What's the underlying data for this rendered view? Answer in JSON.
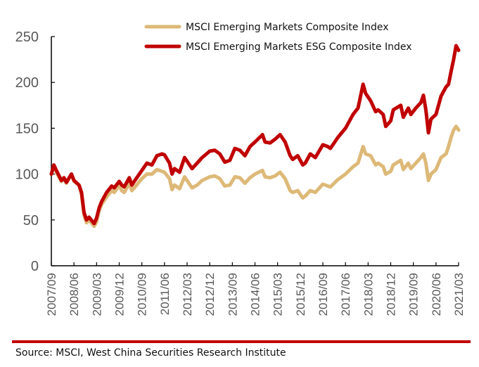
{
  "chart_data": {
    "type": "line",
    "title": "",
    "xlabel": "",
    "ylabel": "",
    "ylim": [
      0,
      250
    ],
    "yticks": [
      0,
      50,
      100,
      150,
      200,
      250
    ],
    "grid": false,
    "legend_position": "top-center",
    "x_range_months": [
      "2007/09",
      "2021/03"
    ],
    "xtick_labels": [
      "2007/09",
      "2008/06",
      "2009/03",
      "2009/12",
      "2010/09",
      "2011/06",
      "2012/03",
      "2012/12",
      "2013/09",
      "2014/06",
      "2015/03",
      "2015/12",
      "2016/09",
      "2017/06",
      "2018/03",
      "2018/12",
      "2019/09",
      "2020/06",
      "2021/03"
    ],
    "series": [
      {
        "name": "MSCI Emerging Markets Composite Index",
        "color": "#DDB978",
        "points": [
          [
            "2007/09",
            100
          ],
          [
            "2007/10",
            108
          ],
          [
            "2007/11",
            102
          ],
          [
            "2008/01",
            92
          ],
          [
            "2008/02",
            95
          ],
          [
            "2008/03",
            90
          ],
          [
            "2008/05",
            100
          ],
          [
            "2008/06",
            92
          ],
          [
            "2008/08",
            88
          ],
          [
            "2008/09",
            78
          ],
          [
            "2008/10",
            55
          ],
          [
            "2008/11",
            47
          ],
          [
            "2008/12",
            50
          ],
          [
            "2009/02",
            43
          ],
          [
            "2009/03",
            48
          ],
          [
            "2009/04",
            60
          ],
          [
            "2009/05",
            67
          ],
          [
            "2009/07",
            75
          ],
          [
            "2009/09",
            82
          ],
          [
            "2009/10",
            80
          ],
          [
            "2009/12",
            88
          ],
          [
            "2010/01",
            82
          ],
          [
            "2010/02",
            80
          ],
          [
            "2010/04",
            90
          ],
          [
            "2010/05",
            82
          ],
          [
            "2010/06",
            85
          ],
          [
            "2010/09",
            95
          ],
          [
            "2010/11",
            100
          ],
          [
            "2011/01",
            100
          ],
          [
            "2011/03",
            105
          ],
          [
            "2011/05",
            103
          ],
          [
            "2011/06",
            102
          ],
          [
            "2011/08",
            95
          ],
          [
            "2011/09",
            83
          ],
          [
            "2011/10",
            88
          ],
          [
            "2011/12",
            84
          ],
          [
            "2012/02",
            97
          ],
          [
            "2012/05",
            85
          ],
          [
            "2012/07",
            88
          ],
          [
            "2012/09",
            93
          ],
          [
            "2012/12",
            97
          ],
          [
            "2013/02",
            98
          ],
          [
            "2013/04",
            95
          ],
          [
            "2013/06",
            87
          ],
          [
            "2013/08",
            88
          ],
          [
            "2013/10",
            97
          ],
          [
            "2013/12",
            96
          ],
          [
            "2014/02",
            90
          ],
          [
            "2014/04",
            96
          ],
          [
            "2014/06",
            100
          ],
          [
            "2014/09",
            104
          ],
          [
            "2014/10",
            97
          ],
          [
            "2014/12",
            96
          ],
          [
            "2015/02",
            98
          ],
          [
            "2015/04",
            102
          ],
          [
            "2015/06",
            95
          ],
          [
            "2015/08",
            82
          ],
          [
            "2015/09",
            80
          ],
          [
            "2015/11",
            82
          ],
          [
            "2016/01",
            74
          ],
          [
            "2016/02",
            76
          ],
          [
            "2016/04",
            82
          ],
          [
            "2016/06",
            80
          ],
          [
            "2016/09",
            89
          ],
          [
            "2016/11",
            87
          ],
          [
            "2016/12",
            86
          ],
          [
            "2017/03",
            94
          ],
          [
            "2017/06",
            100
          ],
          [
            "2017/09",
            108
          ],
          [
            "2017/11",
            112
          ],
          [
            "2018/01",
            130
          ],
          [
            "2018/02",
            122
          ],
          [
            "2018/04",
            120
          ],
          [
            "2018/06",
            110
          ],
          [
            "2018/07",
            112
          ],
          [
            "2018/09",
            108
          ],
          [
            "2018/10",
            100
          ],
          [
            "2018/12",
            103
          ],
          [
            "2019/01",
            110
          ],
          [
            "2019/04",
            115
          ],
          [
            "2019/05",
            105
          ],
          [
            "2019/07",
            112
          ],
          [
            "2019/08",
            106
          ],
          [
            "2019/10",
            112
          ],
          [
            "2019/12",
            118
          ],
          [
            "2020/01",
            122
          ],
          [
            "2020/02",
            112
          ],
          [
            "2020/03",
            93
          ],
          [
            "2020/04",
            100
          ],
          [
            "2020/06",
            105
          ],
          [
            "2020/08",
            118
          ],
          [
            "2020/10",
            122
          ],
          [
            "2020/11",
            130
          ],
          [
            "2020/12",
            140
          ],
          [
            "2021/01",
            148
          ],
          [
            "2021/02",
            152
          ],
          [
            "2021/03",
            148
          ]
        ]
      },
      {
        "name": "MSCI Emerging Markets ESG Composite Index",
        "color": "#C00000",
        "points": [
          [
            "2007/09",
            100
          ],
          [
            "2007/10",
            110
          ],
          [
            "2007/11",
            104
          ],
          [
            "2008/01",
            93
          ],
          [
            "2008/02",
            96
          ],
          [
            "2008/03",
            91
          ],
          [
            "2008/05",
            100
          ],
          [
            "2008/06",
            93
          ],
          [
            "2008/08",
            88
          ],
          [
            "2008/09",
            80
          ],
          [
            "2008/10",
            58
          ],
          [
            "2008/11",
            50
          ],
          [
            "2008/12",
            53
          ],
          [
            "2009/02",
            46
          ],
          [
            "2009/03",
            52
          ],
          [
            "2009/04",
            63
          ],
          [
            "2009/05",
            70
          ],
          [
            "2009/07",
            80
          ],
          [
            "2009/09",
            87
          ],
          [
            "2009/10",
            85
          ],
          [
            "2009/12",
            92
          ],
          [
            "2010/01",
            88
          ],
          [
            "2010/02",
            86
          ],
          [
            "2010/04",
            96
          ],
          [
            "2010/05",
            88
          ],
          [
            "2010/06",
            92
          ],
          [
            "2010/09",
            104
          ],
          [
            "2010/11",
            112
          ],
          [
            "2011/01",
            110
          ],
          [
            "2011/03",
            120
          ],
          [
            "2011/05",
            122
          ],
          [
            "2011/06",
            121
          ],
          [
            "2011/08",
            112
          ],
          [
            "2011/09",
            100
          ],
          [
            "2011/10",
            106
          ],
          [
            "2011/12",
            102
          ],
          [
            "2012/02",
            118
          ],
          [
            "2012/05",
            106
          ],
          [
            "2012/07",
            112
          ],
          [
            "2012/09",
            118
          ],
          [
            "2012/12",
            125
          ],
          [
            "2013/02",
            126
          ],
          [
            "2013/04",
            122
          ],
          [
            "2013/06",
            113
          ],
          [
            "2013/08",
            115
          ],
          [
            "2013/10",
            128
          ],
          [
            "2013/12",
            126
          ],
          [
            "2014/02",
            120
          ],
          [
            "2014/04",
            130
          ],
          [
            "2014/06",
            135
          ],
          [
            "2014/09",
            143
          ],
          [
            "2014/10",
            135
          ],
          [
            "2014/12",
            134
          ],
          [
            "2015/02",
            138
          ],
          [
            "2015/04",
            143
          ],
          [
            "2015/06",
            135
          ],
          [
            "2015/08",
            120
          ],
          [
            "2015/09",
            116
          ],
          [
            "2015/11",
            120
          ],
          [
            "2016/01",
            110
          ],
          [
            "2016/02",
            112
          ],
          [
            "2016/04",
            122
          ],
          [
            "2016/06",
            118
          ],
          [
            "2016/09",
            132
          ],
          [
            "2016/11",
            130
          ],
          [
            "2016/12",
            128
          ],
          [
            "2017/03",
            140
          ],
          [
            "2017/06",
            150
          ],
          [
            "2017/09",
            165
          ],
          [
            "2017/11",
            172
          ],
          [
            "2018/01",
            198
          ],
          [
            "2018/02",
            188
          ],
          [
            "2018/04",
            180
          ],
          [
            "2018/06",
            168
          ],
          [
            "2018/07",
            170
          ],
          [
            "2018/09",
            165
          ],
          [
            "2018/10",
            152
          ],
          [
            "2018/12",
            158
          ],
          [
            "2019/01",
            170
          ],
          [
            "2019/04",
            175
          ],
          [
            "2019/05",
            162
          ],
          [
            "2019/07",
            172
          ],
          [
            "2019/08",
            165
          ],
          [
            "2019/10",
            172
          ],
          [
            "2019/12",
            178
          ],
          [
            "2020/01",
            186
          ],
          [
            "2020/02",
            170
          ],
          [
            "2020/03",
            145
          ],
          [
            "2020/04",
            160
          ],
          [
            "2020/06",
            165
          ],
          [
            "2020/08",
            185
          ],
          [
            "2020/10",
            195
          ],
          [
            "2020/11",
            198
          ],
          [
            "2020/12",
            212
          ],
          [
            "2021/01",
            225
          ],
          [
            "2021/02",
            240
          ],
          [
            "2021/03",
            235
          ]
        ]
      }
    ]
  },
  "source": "Source: MSCI, West China Securities Research Institute",
  "colors": {
    "rule": "#C00000",
    "axis": "#000000"
  }
}
